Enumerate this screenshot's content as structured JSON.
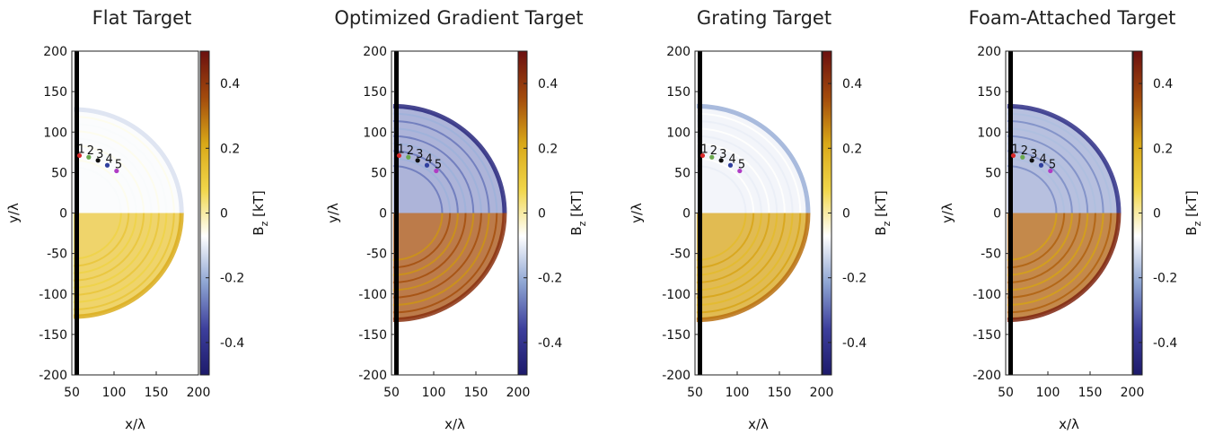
{
  "chart_data": {
    "type": "heatmap",
    "colorbar": {
      "label_main": "B",
      "label_sub": "z",
      "label_unit": " [kT]",
      "range": [
        -0.5,
        0.5
      ],
      "ticks": [
        -0.4,
        -0.2,
        0,
        0.2,
        0.4
      ],
      "tick_labels": [
        "-0.4",
        "-0.2",
        "0",
        "0.2",
        "0.4"
      ],
      "colormap": [
        "#1d1a6b",
        "#3d3f9c",
        "#8fa6d3",
        "#ffffff",
        "#f1d64a",
        "#d9a818",
        "#a24a0c",
        "#6b1010"
      ]
    },
    "xlabel": "x/λ",
    "ylabel": "y/λ",
    "xlim": [
      50,
      200
    ],
    "ylim": [
      -200,
      200
    ],
    "xticks": [
      50,
      100,
      150,
      200
    ],
    "yticks": [
      200,
      150,
      100,
      50,
      0,
      -50,
      -100,
      -150,
      -200
    ],
    "ytick_labels": [
      "200",
      "150",
      "100",
      "50",
      "0",
      "-50",
      "-100",
      "-150",
      "-200"
    ],
    "target_x": 52,
    "probe_points": [
      {
        "label": "1",
        "x": 59,
        "y": 71,
        "color": "#d62728"
      },
      {
        "label": "2",
        "x": 70,
        "y": 69,
        "color": "#6aa84f"
      },
      {
        "label": "3",
        "x": 81,
        "y": 65,
        "color": "#111111"
      },
      {
        "label": "4",
        "x": 92,
        "y": 59,
        "color": "#2f3f9e"
      },
      {
        "label": "5",
        "x": 103,
        "y": 52,
        "color": "#b03cc4"
      }
    ],
    "panels": [
      {
        "title": "Flat Target",
        "front_radius": 128,
        "upper_bz": -0.08,
        "lower_bz": 0.12,
        "rim_upper": -0.12,
        "rim_lower": 0.2
      },
      {
        "title": "Optimized Gradient Target",
        "front_radius": 132,
        "upper_bz": -0.28,
        "lower_bz": 0.35,
        "rim_upper": -0.45,
        "rim_lower": 0.42
      },
      {
        "title": "Grating Target",
        "front_radius": 132,
        "upper_bz": -0.1,
        "lower_bz": 0.22,
        "rim_upper": -0.2,
        "rim_lower": 0.3
      },
      {
        "title": "Foam-Attached Target",
        "front_radius": 132,
        "upper_bz": -0.25,
        "lower_bz": 0.32,
        "rim_upper": -0.42,
        "rim_lower": 0.45
      }
    ]
  }
}
